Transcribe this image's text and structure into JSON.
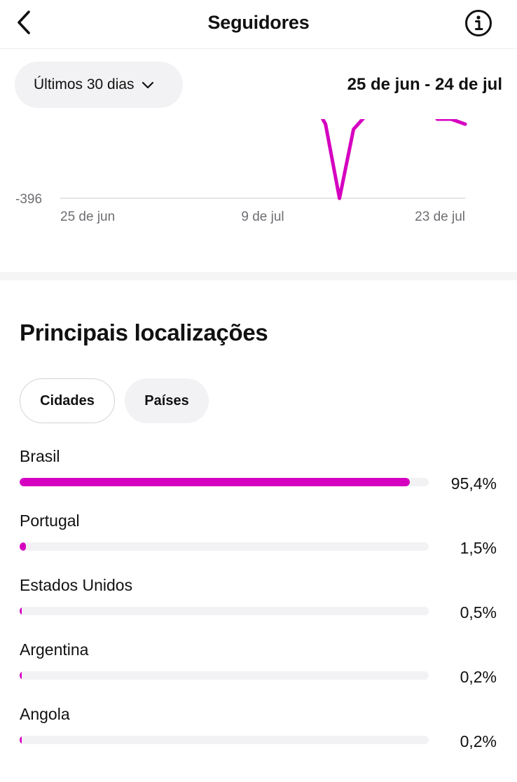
{
  "header": {
    "title": "Seguidores",
    "back_icon": "chevron-left-icon",
    "info_icon": "info-icon"
  },
  "filter": {
    "range_label": "Últimos 30 dias",
    "dropdown_icon": "chevron-down-icon",
    "date_range": "25 de jun - 24 de jul"
  },
  "chart_data": {
    "type": "line",
    "ytick_labels": [
      "-396"
    ],
    "xtick_labels": [
      "25 de jun",
      "9 de jul",
      "23 de jul"
    ],
    "series": [
      {
        "color": "#d500c0",
        "x": [
          "2024-07-13",
          "2024-07-14",
          "2024-07-15",
          "2024-07-16",
          "2024-07-22",
          "2024-07-23",
          "2024-07-24"
        ],
        "y": [
          -200,
          -250,
          -396,
          -260,
          -240,
          -240,
          -250
        ]
      }
    ],
    "ylim": [
      -396,
      -240
    ],
    "grid": false,
    "note_visible": "partially visible, upper part clipped"
  },
  "locations": {
    "title": "Principais localizações",
    "tabs": [
      {
        "label": "Cidades",
        "active": true
      },
      {
        "label": "Países",
        "active": false
      }
    ],
    "items": [
      {
        "name": "Brasil",
        "percent_label": "95,4%",
        "value": 95.4
      },
      {
        "name": "Portugal",
        "percent_label": "1,5%",
        "value": 1.5
      },
      {
        "name": "Estados Unidos",
        "percent_label": "0,5%",
        "value": 0.5
      },
      {
        "name": "Argentina",
        "percent_label": "0,2%",
        "value": 0.2
      },
      {
        "name": "Angola",
        "percent_label": "0,2%",
        "value": 0.2
      }
    ],
    "bar_color": "#d500c0"
  }
}
